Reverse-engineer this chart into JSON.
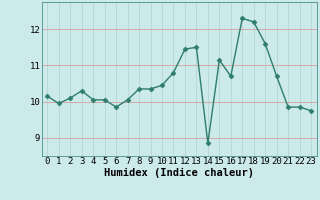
{
  "x": [
    0,
    1,
    2,
    3,
    4,
    5,
    6,
    7,
    8,
    9,
    10,
    11,
    12,
    13,
    14,
    15,
    16,
    17,
    18,
    19,
    20,
    21,
    22,
    23
  ],
  "y": [
    10.15,
    9.95,
    10.1,
    10.3,
    10.05,
    10.05,
    9.85,
    10.05,
    10.35,
    10.35,
    10.45,
    10.8,
    11.45,
    11.5,
    8.85,
    11.15,
    10.7,
    12.3,
    12.2,
    11.6,
    10.7,
    9.85,
    9.85,
    9.75
  ],
  "line_color": "#2e7d6e",
  "bg_color": "#cceaea",
  "grid_color": "#b8d4d4",
  "xlabel": "Humidex (Indice chaleur)",
  "ylim": [
    8.5,
    12.75
  ],
  "xlim": [
    -0.5,
    23.5
  ],
  "yticks": [
    9,
    10,
    11,
    12
  ],
  "xticks": [
    0,
    1,
    2,
    3,
    4,
    5,
    6,
    7,
    8,
    9,
    10,
    11,
    12,
    13,
    14,
    15,
    16,
    17,
    18,
    19,
    20,
    21,
    22,
    23
  ],
  "marker": "D",
  "marker_size": 2.5,
  "line_width": 1.0,
  "xlabel_fontsize": 7.5,
  "tick_fontsize": 6.5,
  "fig_width": 3.2,
  "fig_height": 2.0,
  "dpi": 100
}
